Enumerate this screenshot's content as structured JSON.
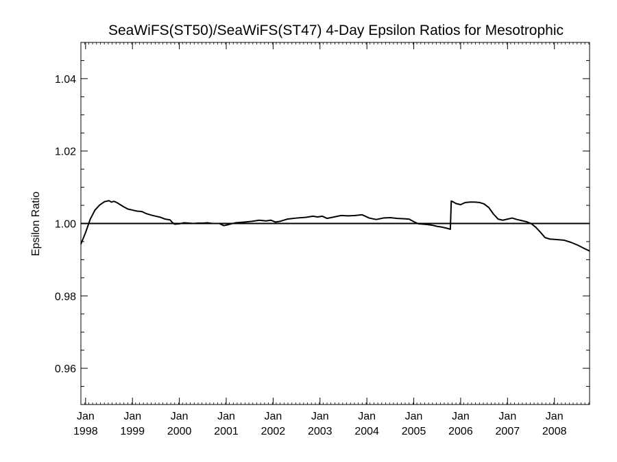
{
  "chart_data": {
    "type": "line",
    "title": "SeaWiFS(ST50)/SeaWiFS(ST47) 4-Day Epsilon Ratios for Mesotrophic",
    "xlabel": "",
    "ylabel": "Epsilon Ratio",
    "ylim": [
      0.95,
      1.05
    ],
    "xlim": [
      1997.9,
      2008.75
    ],
    "y_ticks": [
      {
        "value": 0.96,
        "label": "0.96"
      },
      {
        "value": 0.98,
        "label": "0.98"
      },
      {
        "value": 1.0,
        "label": "1.00"
      },
      {
        "value": 1.02,
        "label": "1.02"
      },
      {
        "value": 1.04,
        "label": "1.04"
      }
    ],
    "x_ticks": [
      {
        "value": 1998,
        "month": "Jan",
        "year": "1998"
      },
      {
        "value": 1999,
        "month": "Jan",
        "year": "1999"
      },
      {
        "value": 2000,
        "month": "Jan",
        "year": "2000"
      },
      {
        "value": 2001,
        "month": "Jan",
        "year": "2001"
      },
      {
        "value": 2002,
        "month": "Jan",
        "year": "2002"
      },
      {
        "value": 2003,
        "month": "Jan",
        "year": "2003"
      },
      {
        "value": 2004,
        "month": "Jan",
        "year": "2004"
      },
      {
        "value": 2005,
        "month": "Jan",
        "year": "2005"
      },
      {
        "value": 2006,
        "month": "Jan",
        "year": "2006"
      },
      {
        "value": 2007,
        "month": "Jan",
        "year": "2007"
      },
      {
        "value": 2008,
        "month": "Jan",
        "year": "2008"
      }
    ],
    "reference_line": 1.0,
    "grid": false,
    "series": [
      {
        "points": [
          [
            1997.9,
            0.9943
          ],
          [
            1998.0,
            0.9975
          ],
          [
            1998.1,
            1.0012
          ],
          [
            1998.2,
            1.0037
          ],
          [
            1998.3,
            1.0051
          ],
          [
            1998.4,
            1.006
          ],
          [
            1998.5,
            1.0063
          ],
          [
            1998.55,
            1.0059
          ],
          [
            1998.6,
            1.0061
          ],
          [
            1998.65,
            1.0059
          ],
          [
            1998.7,
            1.0055
          ],
          [
            1998.8,
            1.0047
          ],
          [
            1998.9,
            1.004
          ],
          [
            1999.0,
            1.0037
          ],
          [
            1999.1,
            1.0034
          ],
          [
            1999.2,
            1.0033
          ],
          [
            1999.3,
            1.0027
          ],
          [
            1999.4,
            1.0023
          ],
          [
            1999.5,
            1.002
          ],
          [
            1999.6,
            1.0017
          ],
          [
            1999.7,
            1.0012
          ],
          [
            1999.8,
            1.001
          ],
          [
            1999.85,
            1.0003
          ],
          [
            1999.9,
            0.9998
          ],
          [
            2000.0,
            0.9999
          ],
          [
            2000.1,
            1.0002
          ],
          [
            2000.2,
            1.0001
          ],
          [
            2000.3,
            1.0
          ],
          [
            2000.4,
            1.0001
          ],
          [
            2000.5,
            1.0001
          ],
          [
            2000.6,
            1.0002
          ],
          [
            2000.7,
            1.0
          ],
          [
            2000.85,
            1.0
          ],
          [
            2000.95,
            0.9994
          ],
          [
            2001.05,
            0.9997
          ],
          [
            2001.2,
            1.0002
          ],
          [
            2001.4,
            1.0004
          ],
          [
            2001.55,
            1.0006
          ],
          [
            2001.7,
            1.0009
          ],
          [
            2001.85,
            1.0007
          ],
          [
            2001.95,
            1.0009
          ],
          [
            2002.05,
            1.0004
          ],
          [
            2002.15,
            1.0006
          ],
          [
            2002.3,
            1.0012
          ],
          [
            2002.5,
            1.0015
          ],
          [
            2002.7,
            1.0017
          ],
          [
            2002.85,
            1.002
          ],
          [
            2002.95,
            1.0018
          ],
          [
            2003.05,
            1.002
          ],
          [
            2003.15,
            1.0014
          ],
          [
            2003.3,
            1.0018
          ],
          [
            2003.45,
            1.0022
          ],
          [
            2003.6,
            1.0021
          ],
          [
            2003.75,
            1.0022
          ],
          [
            2003.9,
            1.0024
          ],
          [
            2004.05,
            1.0015
          ],
          [
            2004.2,
            1.0011
          ],
          [
            2004.35,
            1.0015
          ],
          [
            2004.5,
            1.0016
          ],
          [
            2004.65,
            1.0014
          ],
          [
            2004.8,
            1.0013
          ],
          [
            2004.9,
            1.0012
          ],
          [
            2005.0,
            1.0005
          ],
          [
            2005.1,
            0.9999
          ],
          [
            2005.2,
            0.9998
          ],
          [
            2005.3,
            0.9997
          ],
          [
            2005.4,
            0.9995
          ],
          [
            2005.5,
            0.9992
          ],
          [
            2005.6,
            0.999
          ],
          [
            2005.7,
            0.9987
          ],
          [
            2005.78,
            0.9984
          ],
          [
            2005.8,
            1.0062
          ],
          [
            2005.85,
            1.0059
          ],
          [
            2005.9,
            1.0055
          ],
          [
            2006.0,
            1.0052
          ],
          [
            2006.1,
            1.0058
          ],
          [
            2006.2,
            1.0059
          ],
          [
            2006.3,
            1.0059
          ],
          [
            2006.4,
            1.0058
          ],
          [
            2006.5,
            1.0054
          ],
          [
            2006.6,
            1.0044
          ],
          [
            2006.7,
            1.0026
          ],
          [
            2006.8,
            1.0012
          ],
          [
            2006.9,
            1.0009
          ],
          [
            2007.0,
            1.0012
          ],
          [
            2007.1,
            1.0015
          ],
          [
            2007.2,
            1.0011
          ],
          [
            2007.3,
            1.0008
          ],
          [
            2007.4,
            1.0005
          ],
          [
            2007.5,
            1.0
          ],
          [
            2007.6,
            0.999
          ],
          [
            2007.7,
            0.9976
          ],
          [
            2007.8,
            0.9961
          ],
          [
            2007.9,
            0.9957
          ],
          [
            2008.0,
            0.9956
          ],
          [
            2008.2,
            0.9954
          ],
          [
            2008.35,
            0.9948
          ],
          [
            2008.5,
            0.994
          ],
          [
            2008.65,
            0.993
          ],
          [
            2008.75,
            0.9924
          ]
        ]
      }
    ]
  }
}
